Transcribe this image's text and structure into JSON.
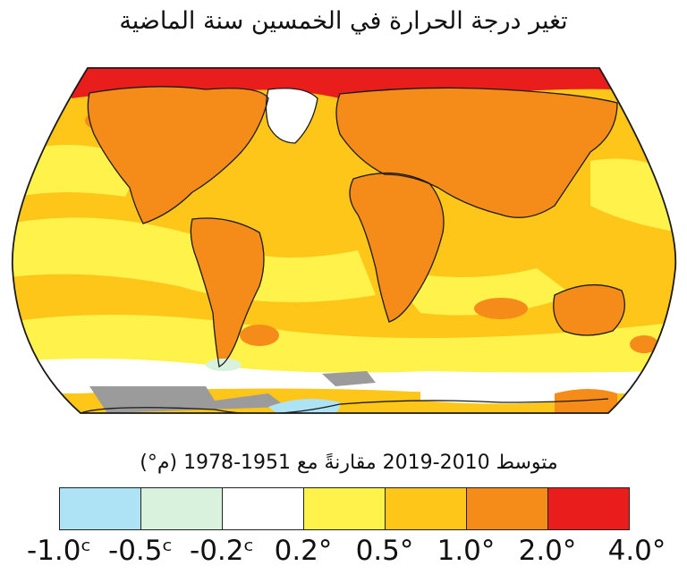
{
  "map": {
    "title": "تغير درجة الحرارة في الخمسين سنة الماضية",
    "subtitle": "متوسط 2010-2019 مقارنةً مع 1951-1978 (م°)",
    "colors": {
      "c_neg10": "#aee3f5",
      "c_neg05": "#d9f2de",
      "c_neg02": "#ffffff",
      "c_02": "#fff24a",
      "c_05": "#ffc61a",
      "c_10": "#f58c1a",
      "c_20": "#ea1d1d",
      "no_data": "#9b9b9b",
      "coastline": "#1a1a1a"
    }
  },
  "legend": {
    "bins": [
      {
        "color": "#aee3f5",
        "range": "-1.0 to -0.5"
      },
      {
        "color": "#d9f2de",
        "range": "-0.5 to -0.2"
      },
      {
        "color": "#ffffff",
        "range": "-0.2 to 0.2"
      },
      {
        "color": "#fff24a",
        "range": "0.2 to 0.5"
      },
      {
        "color": "#ffc61a",
        "range": "0.5 to 1.0"
      },
      {
        "color": "#f58c1a",
        "range": "1.0 to 2.0"
      },
      {
        "color": "#ea1d1d",
        "range": "2.0 to 4.0"
      }
    ],
    "ticks": [
      "-1.0ᶜ",
      "-0.5ᶜ",
      "-0.2ᶜ",
      "0.2°",
      "0.5°",
      "1.0°",
      "2.0°",
      "4.0°"
    ]
  }
}
